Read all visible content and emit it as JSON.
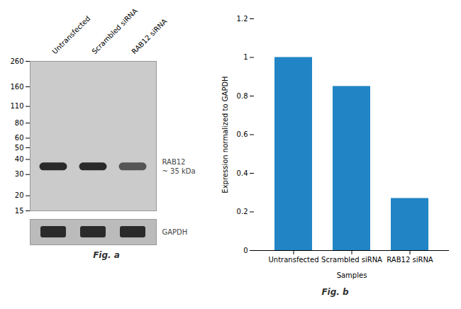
{
  "chart_data": [
    {
      "type": "western_blot",
      "title": "Fig. a",
      "categories": [
        "Untransfected",
        "Scrambled siRNA",
        "RAB12 siRNA"
      ],
      "values": [
        35,
        35,
        35
      ],
      "colors": [
        "#2a2a2a",
        "#2a2a2a",
        "#555555"
      ],
      "log": "y",
      "ylim": [
        15,
        260
      ],
      "yticks": [
        260,
        160,
        110,
        80,
        60,
        50,
        40,
        30,
        20,
        15
      ],
      "annotations": [
        "RAB12\n~ 35 kDa",
        "GAPDH"
      ]
    },
    {
      "type": "bar",
      "title": "Fig. b",
      "categories": [
        "Untransfected",
        "Scrambled siRNA",
        "RAB12 siRNA"
      ],
      "values": [
        1.0,
        0.85,
        0.27
      ],
      "color": "#2185c5",
      "xlabel": "Samples",
      "ylabel": "Expression normalized to GAPDH",
      "ylim": [
        0,
        1.2
      ],
      "yticks": [
        0,
        0.2,
        0.4,
        0.6,
        0.8,
        1.0,
        1.2
      ]
    }
  ]
}
